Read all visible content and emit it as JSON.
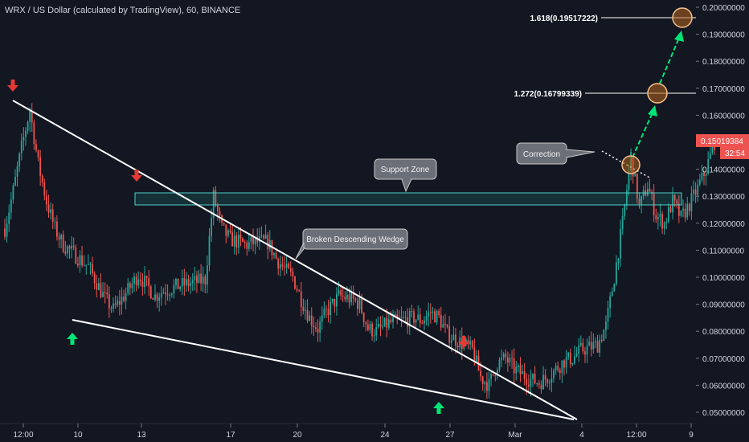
{
  "header": {
    "title": "WRX / US Dollar (calculated by TradingView), 60, BINANCE"
  },
  "price_axis": {
    "ticks": [
      "0.20000000",
      "0.19000000",
      "0.18000000",
      "0.17000000",
      "0.16000000",
      "0.15000000",
      "0.14000000",
      "0.13000000",
      "0.12000000",
      "0.11000000",
      "0.10000000",
      "0.09000000",
      "0.08000000",
      "0.07000000",
      "0.06000000",
      "0.05000000"
    ],
    "last_price": "0.15019384",
    "countdown": "32:54",
    "last_price_color": "#ef5350"
  },
  "time_axis": {
    "ticks": [
      "12:00",
      "10",
      "13",
      "17",
      "20",
      "24",
      "27",
      "Mar",
      "4",
      "12:00",
      "9"
    ]
  },
  "annotations": {
    "fib_1618": "1.618(0.19517222)",
    "fib_1272": "1.272(0.16799339)",
    "support_zone": "Support Zone",
    "wedge": "Broken Descending Wedge",
    "correction": "Correction"
  },
  "colors": {
    "background": "#131722",
    "up": "#26a69a",
    "down": "#ef5350",
    "zone_border": "#4dd0c7",
    "target_fill": "#b5651d",
    "arrow_up": "#00e676",
    "arrow_down": "#e53935"
  },
  "icons": [
    "arrow-down-icon",
    "arrow-up-icon"
  ],
  "chart_data": {
    "type": "candlestick",
    "title": "WRX / US Dollar (calculated by TradingView), 60, BINANCE",
    "xlabel": "",
    "ylabel": "",
    "ylim": [
      0.047,
      0.201
    ],
    "grid": false,
    "x_ticks": [
      "12:00",
      "10",
      "13",
      "17",
      "20",
      "24",
      "27",
      "Mar",
      "4",
      "12:00",
      "9"
    ],
    "price_path": {
      "x_index": [
        0,
        4,
        8,
        12,
        16,
        20,
        24,
        28,
        34,
        40,
        44,
        48,
        52,
        58,
        64,
        68,
        72,
        76,
        80,
        84,
        90,
        96,
        100,
        104,
        108,
        112,
        116,
        120,
        126,
        130,
        134,
        138,
        142,
        146,
        150,
        154,
        160,
        166,
        170,
        174,
        178,
        184,
        190,
        196,
        200,
        204,
        208,
        212,
        216,
        220,
        224,
        228,
        232,
        236,
        240,
        244,
        248,
        252,
        256,
        260,
        264,
        268,
        272,
        276,
        280,
        284,
        288,
        292,
        296,
        300
      ],
      "close": [
        0.118,
        0.132,
        0.148,
        0.162,
        0.142,
        0.128,
        0.118,
        0.112,
        0.108,
        0.104,
        0.098,
        0.092,
        0.088,
        0.094,
        0.101,
        0.097,
        0.093,
        0.095,
        0.096,
        0.097,
        0.098,
        0.099,
        0.13,
        0.118,
        0.114,
        0.113,
        0.112,
        0.113,
        0.113,
        0.107,
        0.103,
        0.1,
        0.092,
        0.085,
        0.081,
        0.087,
        0.093,
        0.092,
        0.09,
        0.081,
        0.08,
        0.083,
        0.084,
        0.085,
        0.084,
        0.087,
        0.085,
        0.079,
        0.077,
        0.075,
        0.073,
        0.063,
        0.06,
        0.068,
        0.07,
        0.066,
        0.064,
        0.062,
        0.061,
        0.063,
        0.066,
        0.069,
        0.07,
        0.073,
        0.074,
        0.075,
        0.082,
        0.1,
        0.12,
        0.145
      ]
    },
    "second_leg": {
      "x_index": [
        300,
        304,
        308,
        312,
        316,
        320,
        324,
        328,
        332,
        336,
        340
      ],
      "close": [
        0.145,
        0.126,
        0.134,
        0.123,
        0.12,
        0.128,
        0.122,
        0.127,
        0.133,
        0.14,
        0.15
      ]
    },
    "last_price": 0.15019384,
    "levels": {
      "fib_1272": 0.16799339,
      "fib_1618": 0.19517222,
      "support_zone": [
        0.1265,
        0.131
      ]
    },
    "annotations": [
      "Support Zone",
      "Broken Descending Wedge",
      "Correction",
      "1.272(0.16799339)",
      "1.618(0.19517222)"
    ]
  }
}
